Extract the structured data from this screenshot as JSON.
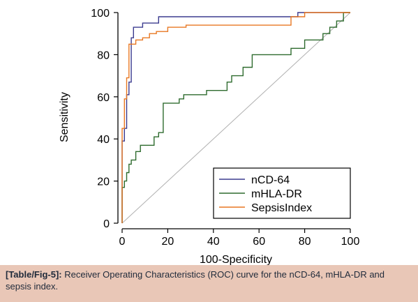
{
  "chart_data": {
    "type": "line",
    "xlabel": "100-Specificity",
    "ylabel": "Sensitivity",
    "xlim": [
      0,
      100
    ],
    "ylim": [
      0,
      100
    ],
    "x_ticks": [
      0,
      20,
      40,
      60,
      80,
      100
    ],
    "y_ticks": [
      0,
      20,
      40,
      60,
      80,
      100
    ],
    "grid": false,
    "legend_position": "bottom-right",
    "diagonal_reference": true,
    "series": [
      {
        "name": "nCD-64",
        "color": "#3b3b8f",
        "x": [
          0,
          0,
          1,
          1,
          2,
          2,
          3,
          3,
          4,
          4,
          5,
          5,
          9,
          9,
          16,
          16,
          77,
          77,
          80,
          80,
          100
        ],
        "y": [
          0,
          39,
          39,
          45,
          45,
          61,
          61,
          67,
          67,
          88,
          88,
          93,
          93,
          95,
          95,
          98,
          98,
          100,
          100,
          100,
          100
        ]
      },
      {
        "name": "mHLA-DR",
        "color": "#2e6b2e",
        "x": [
          0,
          0,
          1,
          1,
          2,
          2,
          3,
          3,
          4,
          4,
          6,
          6,
          8,
          8,
          14,
          14,
          16,
          16,
          18,
          18,
          25,
          25,
          27,
          27,
          29,
          29,
          32,
          32,
          37,
          37,
          43,
          43,
          46,
          46,
          48,
          48,
          51,
          51,
          53,
          53,
          56,
          56,
          57,
          57,
          63,
          63,
          74,
          74,
          80,
          80,
          88,
          88,
          91,
          91,
          94,
          94,
          97,
          97,
          100
        ],
        "y": [
          0,
          17,
          17,
          20,
          20,
          24,
          24,
          28,
          28,
          30,
          30,
          34,
          34,
          37,
          37,
          41,
          41,
          43,
          43,
          57,
          57,
          59,
          59,
          61,
          61,
          61,
          61,
          61,
          61,
          63,
          63,
          63,
          63,
          67,
          67,
          70,
          70,
          70,
          70,
          74,
          74,
          74,
          74,
          80,
          80,
          80,
          80,
          83,
          83,
          87,
          87,
          90,
          90,
          93,
          93,
          96,
          96,
          100,
          100
        ]
      },
      {
        "name": "SepsisIndex",
        "color": "#e87722",
        "x": [
          0,
          0,
          1,
          1,
          2,
          2,
          3,
          3,
          4,
          4,
          6,
          6,
          9,
          9,
          12,
          12,
          15,
          15,
          20,
          20,
          28,
          28,
          74,
          74,
          80,
          80,
          100
        ],
        "y": [
          0,
          45,
          45,
          59,
          59,
          69,
          69,
          85,
          85,
          85,
          85,
          87,
          87,
          88,
          88,
          90,
          90,
          91,
          91,
          93,
          93,
          94,
          94,
          98,
          98,
          100,
          100
        ]
      }
    ]
  },
  "caption": {
    "tag": "[Table/Fig-5]:",
    "text": " Receiver Operating Characteristics (ROC) curve for the nCD-64, mHLA-DR and sepsis index."
  }
}
